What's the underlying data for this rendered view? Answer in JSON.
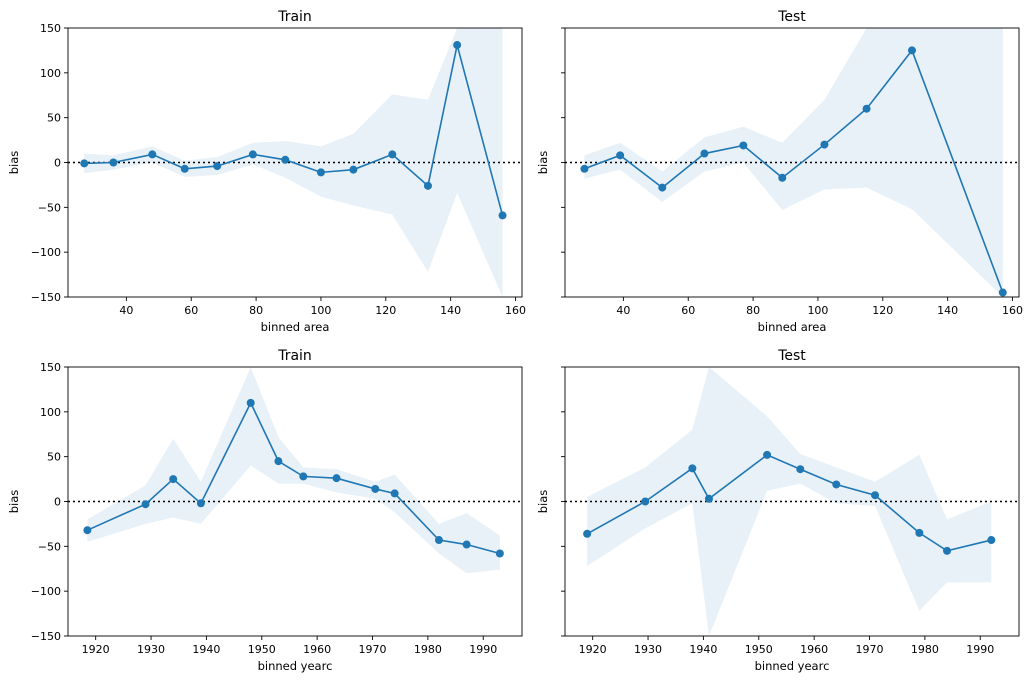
{
  "chart_data": [
    {
      "type": "line",
      "title": "Train",
      "xlabel": "binned area",
      "ylabel": "bias",
      "xlim": [
        22,
        162
      ],
      "ylim": [
        -150,
        150
      ],
      "xticks": [
        40,
        60,
        80,
        100,
        120,
        140,
        160
      ],
      "yticks": [
        -150,
        -100,
        -50,
        0,
        50,
        100,
        150
      ],
      "show_ytick_labels": true,
      "reference_line": 0,
      "series": [
        {
          "x": [
            27,
            36,
            48,
            58,
            68,
            79,
            89,
            100,
            110,
            122,
            133,
            142,
            156
          ],
          "y": [
            -1,
            0,
            9,
            -7,
            -4,
            9,
            3,
            -11,
            -8,
            9,
            -26,
            131,
            -59
          ],
          "lower": [
            -12,
            -8,
            0,
            -16,
            -14,
            -2,
            -17,
            -38,
            -48,
            -58,
            -122,
            -34,
            -150
          ],
          "upper": [
            10,
            8,
            18,
            2,
            6,
            22,
            24,
            18,
            32,
            76,
            70,
            150,
            150
          ]
        }
      ]
    },
    {
      "type": "line",
      "title": "Test",
      "xlabel": "binned area",
      "ylabel": "bias",
      "xlim": [
        22,
        162
      ],
      "ylim": [
        -150,
        150
      ],
      "xticks": [
        40,
        60,
        80,
        100,
        120,
        140,
        160
      ],
      "yticks": [
        -150,
        -100,
        -50,
        0,
        50,
        100,
        150
      ],
      "show_ytick_labels": false,
      "reference_line": 0,
      "series": [
        {
          "x": [
            28,
            39,
            52,
            65,
            77,
            89,
            102,
            115,
            129,
            157
          ],
          "y": [
            -7,
            8,
            -28,
            10,
            19,
            -17,
            20,
            60,
            125,
            -145
          ],
          "lower": [
            -18,
            -8,
            -44,
            -10,
            0,
            -53,
            -30,
            -28,
            -52,
            -150
          ],
          "upper": [
            8,
            22,
            -10,
            28,
            40,
            22,
            70,
            150,
            150,
            150
          ]
        }
      ]
    },
    {
      "type": "line",
      "title": "Train",
      "xlabel": "binned yearc",
      "ylabel": "bias",
      "xlim": [
        1915,
        1997
      ],
      "ylim": [
        -150,
        150
      ],
      "xticks": [
        1920,
        1930,
        1940,
        1950,
        1960,
        1970,
        1980,
        1990
      ],
      "yticks": [
        -150,
        -100,
        -50,
        0,
        50,
        100,
        150
      ],
      "show_ytick_labels": true,
      "reference_line": 0,
      "series": [
        {
          "x": [
            1918.5,
            1929,
            1934,
            1939,
            1948,
            1953,
            1957.5,
            1963.5,
            1970.5,
            1974,
            1982,
            1987,
            1993
          ],
          "y": [
            -32,
            -3,
            25,
            -2,
            110,
            45,
            28,
            26,
            14,
            9,
            -43,
            -48,
            -58
          ],
          "lower": [
            -45,
            -25,
            -18,
            -25,
            40,
            20,
            20,
            10,
            3,
            -12,
            -58,
            -80,
            -76
          ],
          "upper": [
            -20,
            18,
            70,
            22,
            150,
            72,
            38,
            36,
            22,
            30,
            -25,
            -13,
            -38
          ]
        }
      ]
    },
    {
      "type": "line",
      "title": "Test",
      "xlabel": "binned yearc",
      "ylabel": "bias",
      "xlim": [
        1915,
        1997
      ],
      "ylim": [
        -150,
        150
      ],
      "xticks": [
        1920,
        1930,
        1940,
        1950,
        1960,
        1970,
        1980,
        1990
      ],
      "yticks": [
        -150,
        -100,
        -50,
        0,
        50,
        100,
        150
      ],
      "show_ytick_labels": false,
      "reference_line": 0,
      "series": [
        {
          "x": [
            1919,
            1929.5,
            1938,
            1941,
            1951.5,
            1957.5,
            1964,
            1971,
            1979,
            1984,
            1992
          ],
          "y": [
            -36,
            0,
            37,
            3,
            52,
            36,
            19,
            7,
            -35,
            -55,
            -43
          ],
          "lower": [
            -72,
            -30,
            -2,
            -150,
            12,
            20,
            -2,
            -5,
            -122,
            -90,
            -90
          ],
          "upper": [
            5,
            38,
            80,
            150,
            95,
            53,
            38,
            22,
            52,
            -20,
            0
          ]
        }
      ]
    }
  ]
}
